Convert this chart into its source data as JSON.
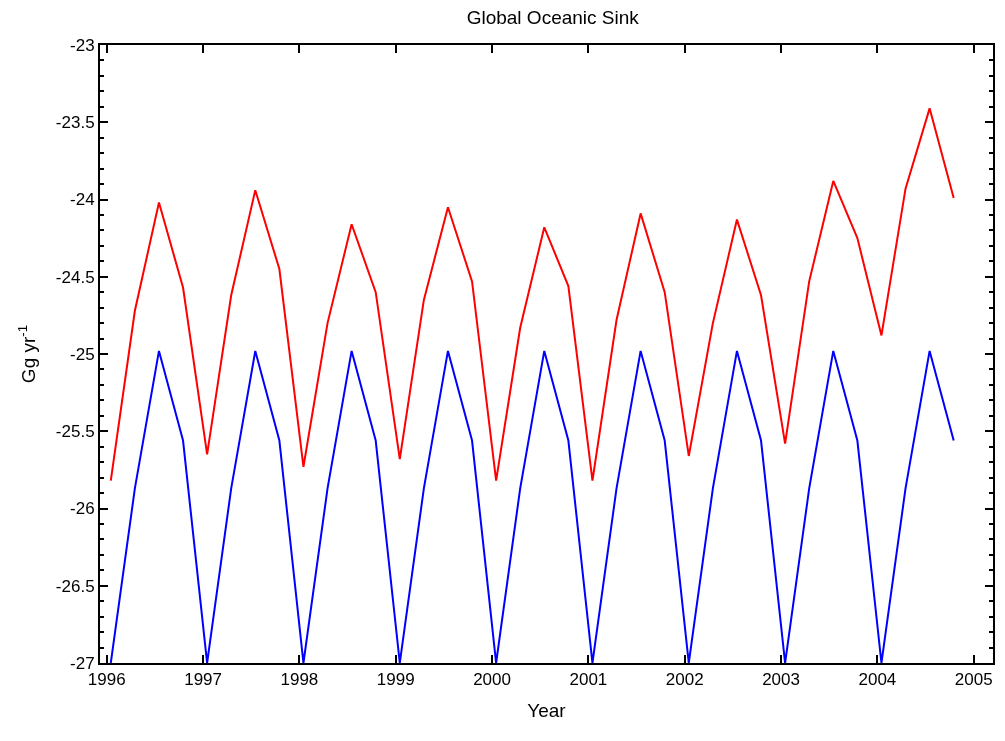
{
  "chart_data": {
    "type": "line",
    "title": "Global Oceanic Sink",
    "xlabel": "Year",
    "ylabel": "Gg yr$^{-1}$",
    "x": [
      1996.042,
      1996.292,
      1996.542,
      1996.792,
      1997.042,
      1997.292,
      1997.542,
      1997.792,
      1998.042,
      1998.292,
      1998.542,
      1998.792,
      1999.042,
      1999.292,
      1999.542,
      1999.792,
      2000.042,
      2000.292,
      2000.542,
      2000.792,
      2001.042,
      2001.292,
      2001.542,
      2001.792,
      2002.042,
      2002.292,
      2002.542,
      2002.792,
      2003.042,
      2003.292,
      2003.542,
      2003.792,
      2004.042,
      2004.292,
      2004.542,
      2004.792
    ],
    "series": [
      {
        "color": "#ff0000",
        "values": [
          -25.82,
          -24.72,
          -24.02,
          -24.57,
          -25.65,
          -24.62,
          -23.94,
          -24.45,
          -25.73,
          -24.8,
          -24.16,
          -24.6,
          -25.68,
          -24.65,
          -24.05,
          -24.53,
          -25.82,
          -24.83,
          -24.18,
          -24.56,
          -25.82,
          -24.78,
          -24.09,
          -24.6,
          -25.66,
          -24.8,
          -24.13,
          -24.62,
          -25.58,
          -24.53,
          -23.88,
          -24.25,
          -24.88,
          -23.93,
          -23.41,
          -23.99
        ]
      },
      {
        "color": "#0000ff",
        "values": [
          -27.0,
          -25.87,
          -24.98,
          -25.56,
          -27.0,
          -25.87,
          -24.98,
          -25.56,
          -27.0,
          -25.87,
          -24.98,
          -25.56,
          -27.0,
          -25.87,
          -24.98,
          -25.56,
          -27.0,
          -25.87,
          -24.98,
          -25.56,
          -27.0,
          -25.87,
          -24.98,
          -25.56,
          -27.0,
          -25.87,
          -24.98,
          -25.56,
          -27.0,
          -25.87,
          -24.98,
          -25.56,
          -27.0,
          -25.87,
          -24.98,
          -25.56
        ]
      }
    ],
    "xlim": [
      1995.93,
      2005.2
    ],
    "xticks": [
      1996,
      1997,
      1998,
      1999,
      2000,
      2001,
      2002,
      2003,
      2004,
      2005
    ],
    "ylim": [
      -27,
      -23
    ],
    "yticks": [
      -27,
      -26.5,
      -26,
      -25.5,
      -25,
      -24.5,
      -24,
      -23.5,
      -23
    ],
    "grid": false,
    "marker": "none",
    "line_style": "solid"
  }
}
